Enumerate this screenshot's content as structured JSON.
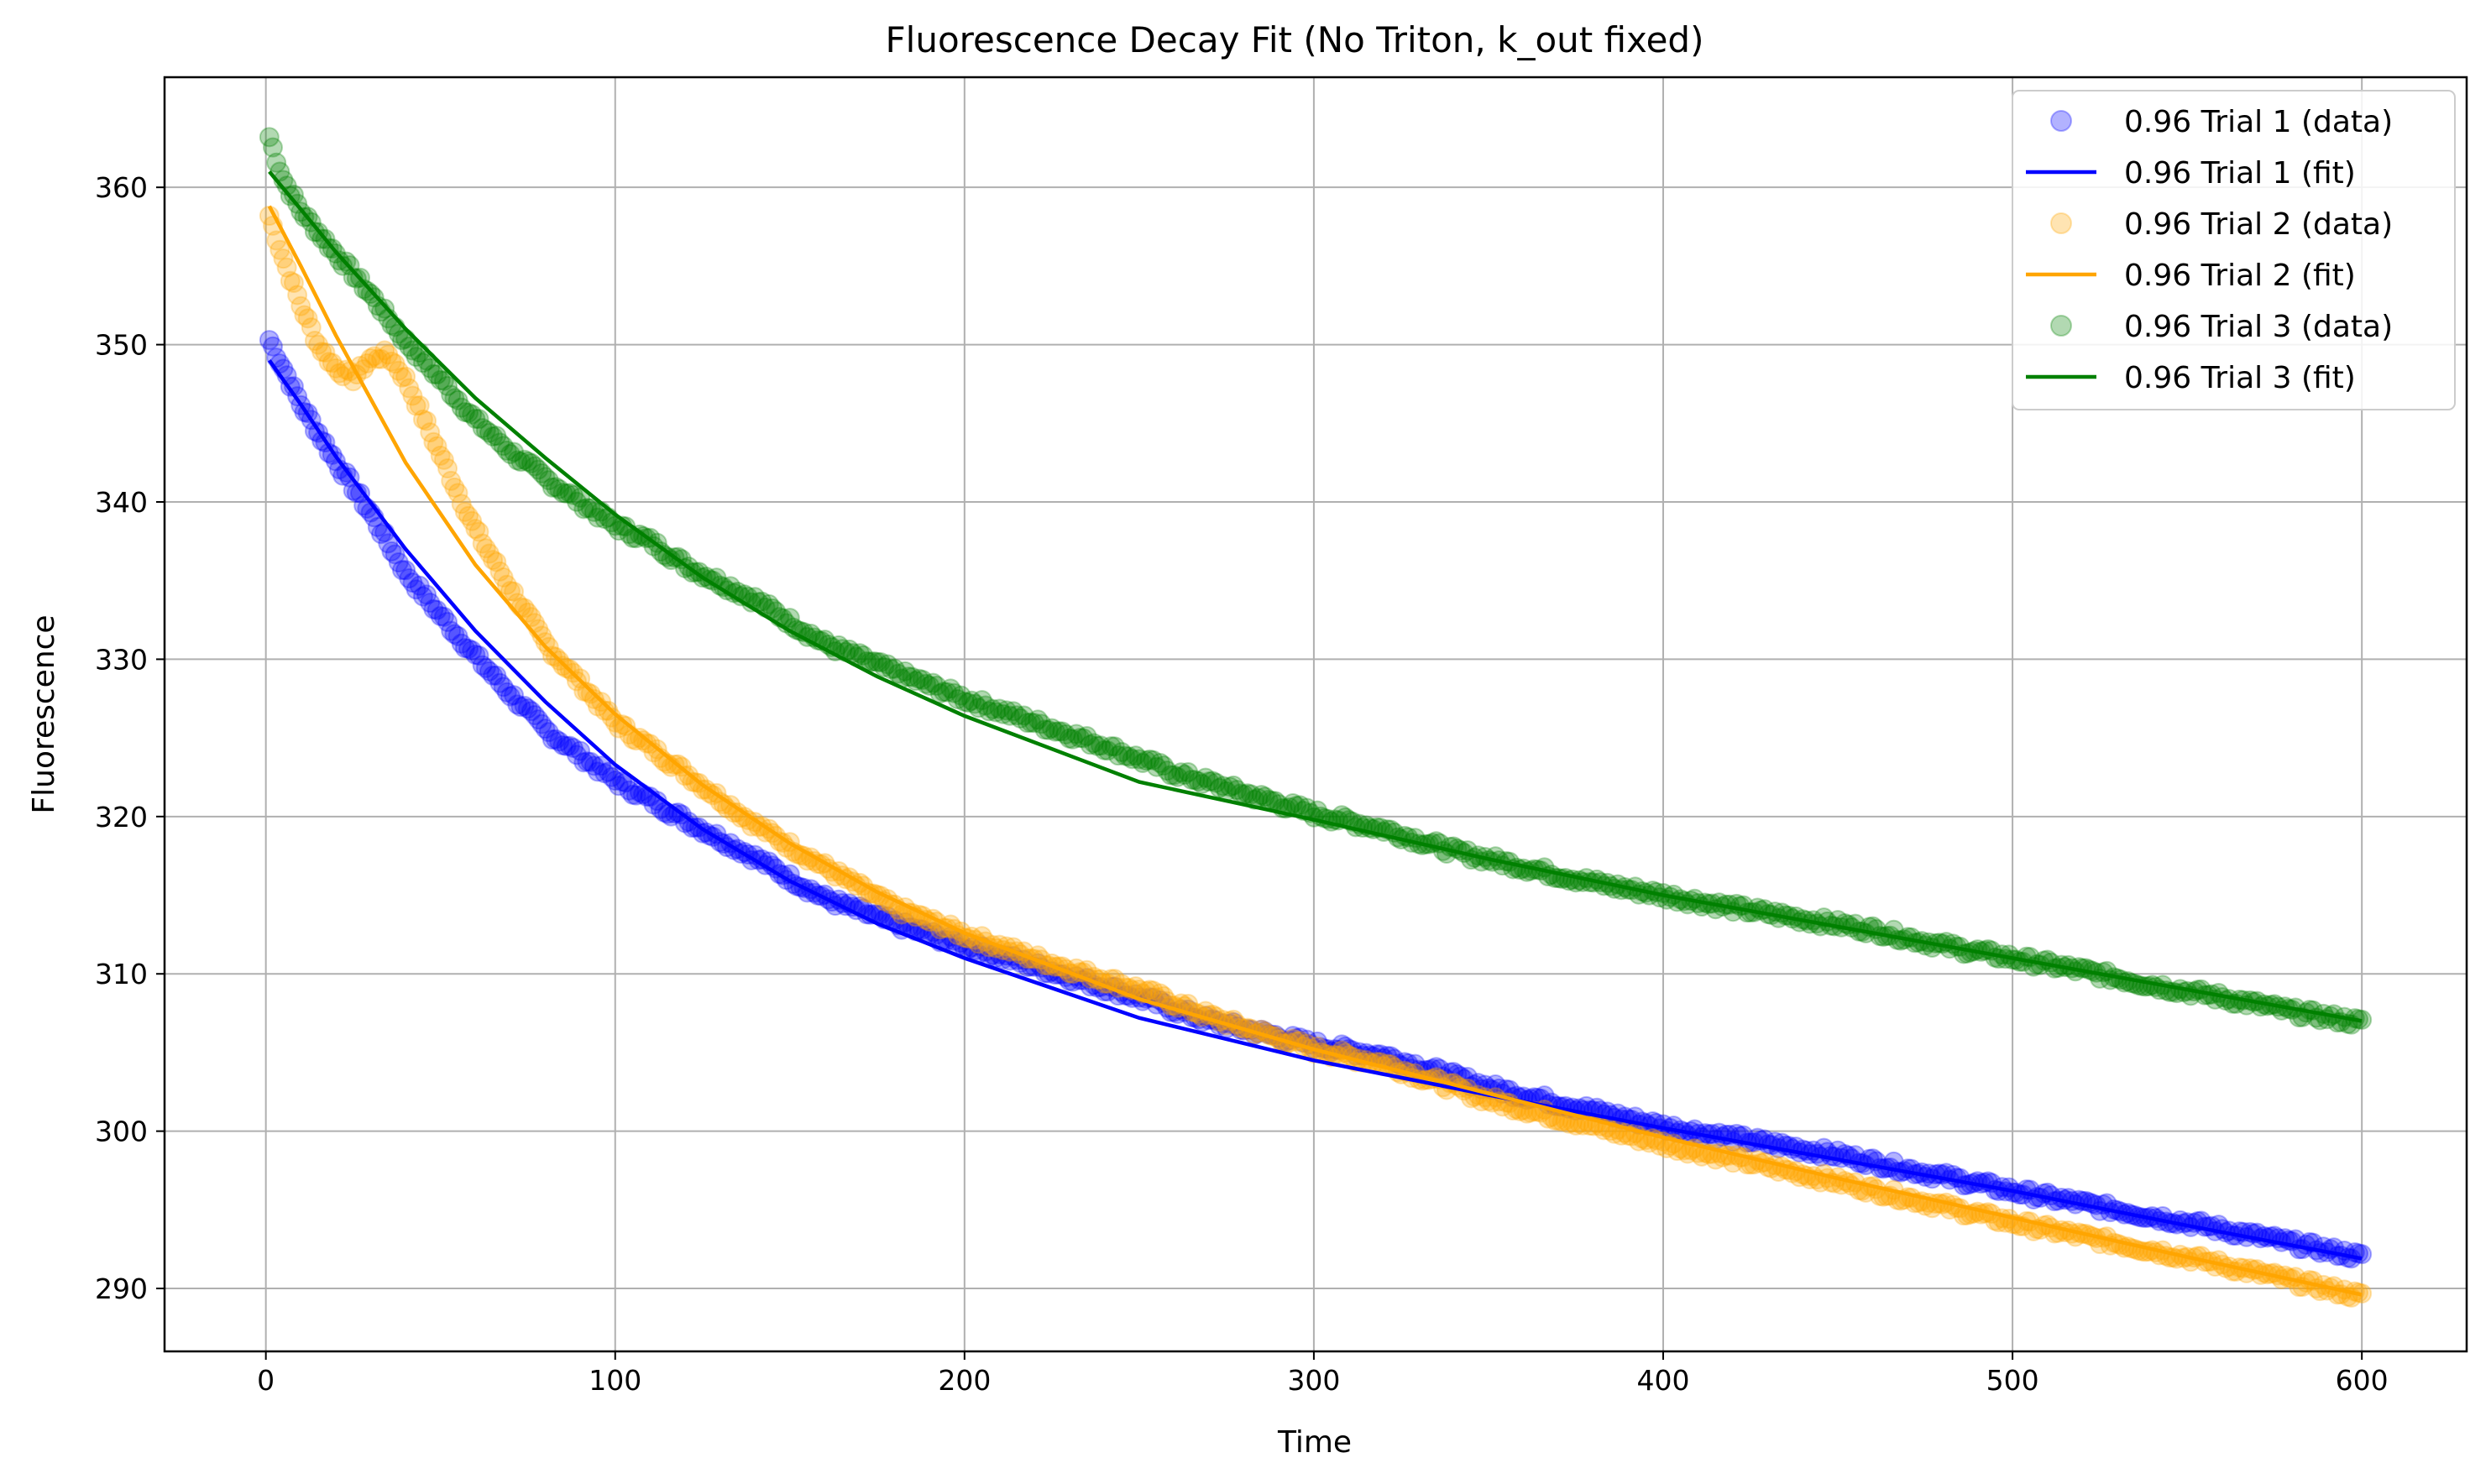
{
  "chart_data": {
    "type": "scatter",
    "title": "Fluorescence Decay Fit (No Triton, k_out fixed)",
    "xlabel": "Time",
    "ylabel": "Fluorescence",
    "xlim": [
      -29,
      630
    ],
    "ylim": [
      286,
      367
    ],
    "xticks": [
      0,
      100,
      200,
      300,
      400,
      500,
      600
    ],
    "yticks": [
      290,
      300,
      310,
      320,
      330,
      340,
      350,
      360
    ],
    "grid": true,
    "legend_position": "top-right",
    "time_range": [
      1,
      600
    ],
    "series": [
      {
        "name": "0.96 Trial 1 (data)",
        "kind": "scatter",
        "color": "#0000ff",
        "points": [
          [
            1,
            350.3
          ],
          [
            5,
            348.5
          ],
          [
            10,
            346.2
          ],
          [
            20,
            342.6
          ],
          [
            30,
            339.3
          ],
          [
            40,
            335.5
          ],
          [
            50,
            332.8
          ],
          [
            60,
            330.2
          ],
          [
            70,
            327.8
          ],
          [
            80,
            325.5
          ],
          [
            100,
            322.3
          ],
          [
            120,
            319.8
          ],
          [
            140,
            317.4
          ],
          [
            160,
            314.8
          ],
          [
            180,
            313.2
          ],
          [
            200,
            311.8
          ],
          [
            220,
            310.5
          ],
          [
            250,
            308.5
          ],
          [
            270,
            307.0
          ],
          [
            300,
            305.5
          ],
          [
            320,
            304.8
          ],
          [
            350,
            302.8
          ],
          [
            400,
            300.3
          ],
          [
            450,
            298.5
          ],
          [
            500,
            296.2
          ],
          [
            550,
            294.2
          ],
          [
            600,
            292.0
          ]
        ]
      },
      {
        "name": "0.96 Trial 1 (fit)",
        "kind": "line",
        "color": "#0000ff",
        "points": [
          [
            1,
            349.0
          ],
          [
            10,
            346.2
          ],
          [
            20,
            342.9
          ],
          [
            40,
            337.0
          ],
          [
            60,
            331.8
          ],
          [
            80,
            327.3
          ],
          [
            100,
            323.3
          ],
          [
            125,
            319.2
          ],
          [
            150,
            315.9
          ],
          [
            175,
            313.2
          ],
          [
            200,
            311.0
          ],
          [
            250,
            307.2
          ],
          [
            300,
            304.5
          ],
          [
            350,
            302.3
          ],
          [
            400,
            300.2
          ],
          [
            450,
            298.2
          ],
          [
            500,
            296.2
          ],
          [
            550,
            294.0
          ],
          [
            600,
            291.9
          ]
        ]
      },
      {
        "name": "0.96 Trial 2 (data)",
        "kind": "scatter",
        "color": "#ffa500",
        "points": [
          [
            1,
            358.2
          ],
          [
            5,
            355.5
          ],
          [
            10,
            352.5
          ],
          [
            15,
            350.0
          ],
          [
            20,
            348.5
          ],
          [
            25,
            347.9
          ],
          [
            30,
            349.1
          ],
          [
            35,
            349.4
          ],
          [
            40,
            347.8
          ],
          [
            50,
            343.0
          ],
          [
            60,
            338.2
          ],
          [
            70,
            334.5
          ],
          [
            80,
            331.0
          ],
          [
            90,
            328.5
          ],
          [
            100,
            326.0
          ],
          [
            120,
            322.8
          ],
          [
            140,
            319.5
          ],
          [
            160,
            316.8
          ],
          [
            180,
            314.2
          ],
          [
            200,
            312.5
          ],
          [
            220,
            311.0
          ],
          [
            250,
            309.0
          ],
          [
            270,
            307.3
          ],
          [
            300,
            305.2
          ],
          [
            320,
            304.3
          ],
          [
            350,
            302.0
          ],
          [
            400,
            299.2
          ],
          [
            450,
            296.8
          ],
          [
            500,
            294.2
          ],
          [
            550,
            292.0
          ],
          [
            600,
            289.5
          ]
        ]
      },
      {
        "name": "0.96 Trial 2 (fit)",
        "kind": "line",
        "color": "#ffa500",
        "points": [
          [
            1,
            358.8
          ],
          [
            10,
            355.0
          ],
          [
            20,
            350.6
          ],
          [
            40,
            342.5
          ],
          [
            60,
            336.0
          ],
          [
            80,
            330.8
          ],
          [
            100,
            326.5
          ],
          [
            125,
            322.0
          ],
          [
            150,
            318.3
          ],
          [
            175,
            315.2
          ],
          [
            200,
            312.6
          ],
          [
            250,
            308.4
          ],
          [
            300,
            305.2
          ],
          [
            350,
            302.4
          ],
          [
            400,
            299.6
          ],
          [
            450,
            297.0
          ],
          [
            500,
            294.5
          ],
          [
            550,
            292.0
          ],
          [
            600,
            289.6
          ]
        ]
      },
      {
        "name": "0.96 Trial 3 (data)",
        "kind": "scatter",
        "color": "#008000",
        "points": [
          [
            1,
            363.2
          ],
          [
            3,
            361.8
          ],
          [
            5,
            360.5
          ],
          [
            10,
            358.5
          ],
          [
            20,
            355.8
          ],
          [
            30,
            353.2
          ],
          [
            40,
            350.2
          ],
          [
            50,
            347.8
          ],
          [
            60,
            345.2
          ],
          [
            70,
            343.2
          ],
          [
            80,
            341.5
          ],
          [
            90,
            340.0
          ],
          [
            100,
            338.5
          ],
          [
            110,
            337.5
          ],
          [
            120,
            336.0
          ],
          [
            140,
            333.8
          ],
          [
            160,
            331.0
          ],
          [
            180,
            329.2
          ],
          [
            200,
            327.5
          ],
          [
            220,
            326.0
          ],
          [
            240,
            324.5
          ],
          [
            260,
            322.8
          ],
          [
            280,
            321.5
          ],
          [
            300,
            320.2
          ],
          [
            320,
            319.2
          ],
          [
            340,
            317.8
          ],
          [
            360,
            316.8
          ],
          [
            380,
            315.8
          ],
          [
            400,
            315.0
          ],
          [
            420,
            314.2
          ],
          [
            440,
            313.5
          ],
          [
            460,
            312.8
          ],
          [
            480,
            311.8
          ],
          [
            500,
            311.0
          ],
          [
            520,
            310.2
          ],
          [
            540,
            309.3
          ],
          [
            560,
            308.5
          ],
          [
            580,
            307.6
          ],
          [
            600,
            306.9
          ]
        ]
      },
      {
        "name": "0.96 Trial 3 (fit)",
        "kind": "line",
        "color": "#008000",
        "points": [
          [
            1,
            361.0
          ],
          [
            10,
            358.6
          ],
          [
            20,
            355.9
          ],
          [
            40,
            351.0
          ],
          [
            60,
            346.6
          ],
          [
            80,
            342.8
          ],
          [
            100,
            339.2
          ],
          [
            125,
            335.2
          ],
          [
            150,
            331.8
          ],
          [
            175,
            328.9
          ],
          [
            200,
            326.4
          ],
          [
            250,
            322.2
          ],
          [
            300,
            319.8
          ],
          [
            350,
            317.3
          ],
          [
            400,
            315.0
          ],
          [
            450,
            313.0
          ],
          [
            500,
            311.0
          ],
          [
            550,
            309.0
          ],
          [
            600,
            307.0
          ]
        ]
      }
    ]
  }
}
